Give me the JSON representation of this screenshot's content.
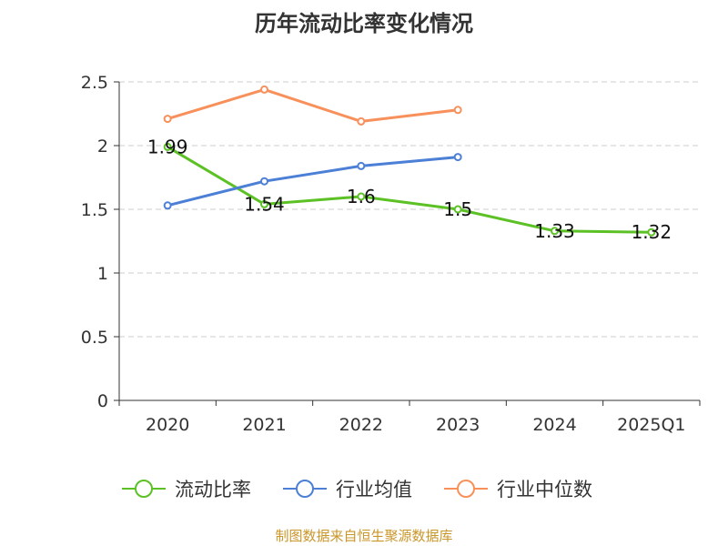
{
  "chart_data": {
    "type": "line",
    "title": "历年流动比率变化情况",
    "categories": [
      "2020",
      "2021",
      "2022",
      "2023",
      "2024",
      "2025Q1"
    ],
    "y_ticks": [
      "0",
      "0.5",
      "1",
      "1.5",
      "2",
      "2.5"
    ],
    "ylim": [
      0,
      2.5
    ],
    "grid": true,
    "legend_position": "bottom",
    "series": [
      {
        "name": "流动比率",
        "color": "#5cc125",
        "values": [
          1.99,
          1.54,
          1.6,
          1.5,
          1.33,
          1.32
        ],
        "labels": [
          "1.99",
          "1.54",
          "1.6",
          "1.5",
          "1.33",
          "1.32"
        ]
      },
      {
        "name": "行业均值",
        "color": "#4c7fd6",
        "values": [
          1.53,
          1.72,
          1.84,
          1.91,
          null,
          null
        ]
      },
      {
        "name": "行业中位数",
        "color": "#f7905a",
        "values": [
          2.21,
          2.44,
          2.19,
          2.28,
          null,
          null
        ]
      }
    ]
  },
  "source_text": "制图数据来自恒生聚源数据库"
}
